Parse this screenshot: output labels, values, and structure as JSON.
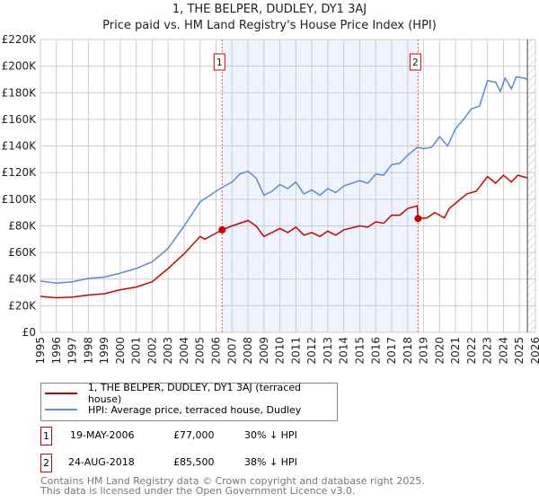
{
  "chart_data": {
    "type": "line",
    "title": "1, THE BELPER, DUDLEY, DY1 3AJ",
    "subtitle": "Price paid vs. HM Land Registry's House Price Index (HPI)",
    "xlim": [
      1995,
      2026
    ],
    "ylim": [
      0,
      220000
    ],
    "yticks": [
      {
        "v": 0,
        "l": "£0"
      },
      {
        "v": 20000,
        "l": "£20K"
      },
      {
        "v": 40000,
        "l": "£40K"
      },
      {
        "v": 60000,
        "l": "£60K"
      },
      {
        "v": 80000,
        "l": "£80K"
      },
      {
        "v": 100000,
        "l": "£100K"
      },
      {
        "v": 120000,
        "l": "£120K"
      },
      {
        "v": 140000,
        "l": "£140K"
      },
      {
        "v": 160000,
        "l": "£160K"
      },
      {
        "v": 180000,
        "l": "£180K"
      },
      {
        "v": 200000,
        "l": "£200K"
      },
      {
        "v": 220000,
        "l": "£220K"
      }
    ],
    "xticks": [
      "1995",
      "1996",
      "1997",
      "1998",
      "1999",
      "2000",
      "2001",
      "2002",
      "2003",
      "2004",
      "2005",
      "2006",
      "2007",
      "2008",
      "2009",
      "2010",
      "2011",
      "2012",
      "2013",
      "2014",
      "2015",
      "2016",
      "2017",
      "2018",
      "2019",
      "2020",
      "2021",
      "2022",
      "2023",
      "2024",
      "2025",
      "2026"
    ],
    "grid": true,
    "series": [
      {
        "name": "1, THE BELPER, DUDLEY, DY1 3AJ (terraced house)",
        "color": "#cc0000",
        "x": [
          1995,
          1996,
          1997,
          1998,
          1999,
          2000,
          2001,
          2002,
          2003,
          2004,
          2005,
          2005.3,
          2006.38,
          2007,
          2008,
          2008.5,
          2009,
          2010,
          2010.5,
          2011,
          2011.5,
          2012,
          2012.5,
          2013,
          2013.5,
          2014,
          2015,
          2015.5,
          2016,
          2016.5,
          2017,
          2017.5,
          2018,
          2018.6,
          2018.65,
          2019.2,
          2019.7,
          2020.3,
          2020.6,
          2021.2,
          2021.7,
          2022.3,
          2023,
          2023.5,
          2024,
          2024.5,
          2024.9,
          2025.5
        ],
        "y": [
          27000,
          26000,
          26500,
          28000,
          29000,
          32000,
          34000,
          38000,
          48000,
          59000,
          72000,
          70000,
          77000,
          80000,
          84000,
          80000,
          72000,
          78000,
          75000,
          79000,
          73000,
          75000,
          72000,
          76000,
          73000,
          77000,
          80000,
          79000,
          83000,
          82000,
          88000,
          88000,
          93000,
          95000,
          85500,
          86000,
          90000,
          86000,
          93000,
          99000,
          104000,
          106000,
          117000,
          112000,
          118000,
          113000,
          118000,
          116000
        ]
      },
      {
        "name": "HPI: Average price, terraced house, Dudley",
        "color": "#5b8bd0",
        "x": [
          1995,
          1996,
          1997,
          1998,
          1999,
          2000,
          2001,
          2002,
          2003,
          2004,
          2005,
          2005.5,
          2006,
          2006.4,
          2007,
          2007.5,
          2008,
          2008.5,
          2009,
          2009.5,
          2010,
          2010.5,
          2011,
          2011.5,
          2012,
          2012.5,
          2013,
          2013.5,
          2014,
          2015,
          2015.5,
          2016,
          2016.5,
          2017,
          2017.5,
          2018,
          2018.6,
          2019,
          2019.5,
          2020,
          2020.5,
          2021,
          2021.5,
          2022,
          2022.5,
          2023,
          2023.5,
          2023.8,
          2024.1,
          2024.5,
          2024.8,
          2025.3,
          2025.5
        ],
        "y": [
          38500,
          37000,
          38000,
          40500,
          41500,
          44500,
          48000,
          53000,
          63000,
          80000,
          98000,
          102000,
          106000,
          109000,
          113000,
          119000,
          121000,
          116000,
          103000,
          106000,
          111000,
          108000,
          113000,
          104000,
          107000,
          103000,
          108000,
          105000,
          110000,
          114000,
          112000,
          119000,
          118000,
          126000,
          127000,
          133000,
          139000,
          138000,
          139000,
          147000,
          140000,
          153000,
          160000,
          168000,
          170000,
          189000,
          188000,
          181000,
          191000,
          183000,
          192000,
          191000,
          190000
        ]
      }
    ],
    "sales": [
      {
        "label": "1",
        "x": 2006.38,
        "y": 77000
      },
      {
        "label": "2",
        "x": 2018.65,
        "y": 85500
      }
    ],
    "shaded_range": [
      2006.38,
      2018.65
    ],
    "hatched_from": 2025.5
  },
  "legend": {
    "red": "1, THE BELPER, DUDLEY, DY1 3AJ (terraced house)",
    "blue": "HPI: Average price, terraced house, Dudley"
  },
  "table": [
    {
      "n": "1",
      "date": "19-MAY-2006",
      "price": "£77,000",
      "hpi": "30% ↓ HPI"
    },
    {
      "n": "2",
      "date": "24-AUG-2018",
      "price": "£85,500",
      "hpi": "38% ↓ HPI"
    }
  ],
  "footer": [
    "Contains HM Land Registry data © Crown copyright and database right 2025.",
    "This data is licensed under the Open Government Licence v3.0."
  ]
}
